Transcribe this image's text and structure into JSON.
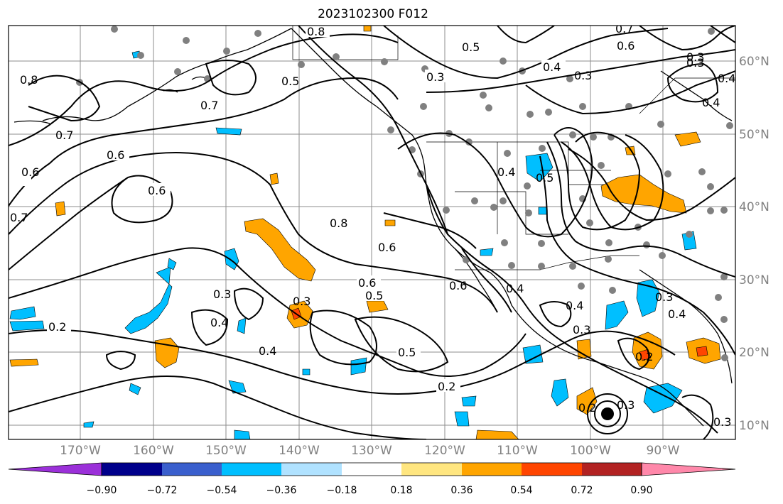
{
  "title": "2023102300 F012",
  "axes": {
    "lon_labels": [
      "170°W",
      "160°W",
      "150°W",
      "140°W",
      "130°W",
      "120°W",
      "110°W",
      "100°W",
      "90°W"
    ],
    "lat_labels": [
      "60°N",
      "50°N",
      "40°N",
      "30°N",
      "20°N",
      "10°N"
    ]
  },
  "contour_labels": [
    "0.8",
    "0.7",
    "0.6",
    "0.5",
    "0.4",
    "0.3",
    "0.2"
  ],
  "colorbar": {
    "ticks": [
      "−0.90",
      "−0.72",
      "−0.54",
      "−0.36",
      "−0.18",
      "0.18",
      "0.36",
      "0.54",
      "0.72",
      "0.90"
    ],
    "colors": {
      "under": "#9b30d9",
      "bins": [
        "#00008b",
        "#3a5fcd",
        "#00bfff",
        "#b0e2ff",
        "#ffffff",
        "#ffe680",
        "#ffa500",
        "#ff4500",
        "#b22222",
        "#ff88aa"
      ],
      "low_purple_bin": "#9b30d9",
      "over": "#ff88aa"
    }
  }
}
